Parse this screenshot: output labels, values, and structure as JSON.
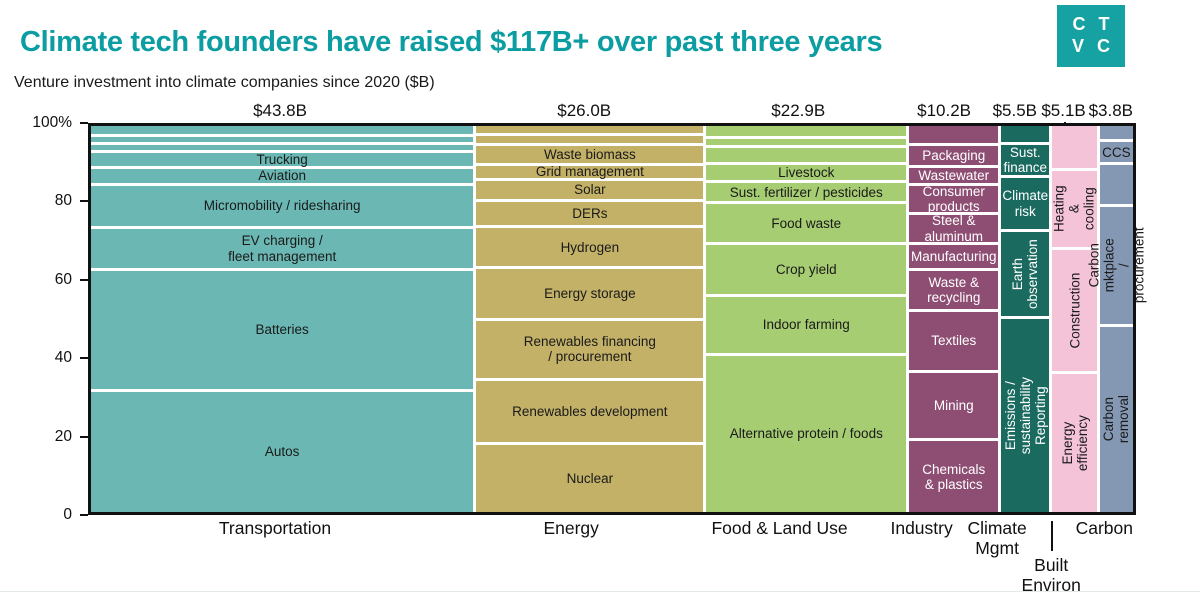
{
  "header": {
    "title": "Climate tech founders have raised $117B+ over past three years",
    "subtitle": "Venture investment into climate companies since 2020 ($B)",
    "title_color": "#0b9da1",
    "logo": {
      "line1": "CT",
      "line2": "VC",
      "background": "#16a2a2",
      "text_color": "#ffffff"
    }
  },
  "chart_data": {
    "type": "marimekko",
    "title": "Climate tech founders have raised $117B+ over past three years",
    "subtitle": "Venture investment into climate companies since 2020 ($B)",
    "total_value_billions": 117.3,
    "y_axis": {
      "ticks": [
        "100%",
        "80",
        "60",
        "40",
        "20",
        "0"
      ],
      "min": 0,
      "max": 100,
      "grid": false
    },
    "columns": [
      {
        "category": "Transportation",
        "value": 43.8,
        "value_label": "$43.8B",
        "color": "#6ab7b3",
        "text_color": "#1a1a1a",
        "segments": [
          {
            "label": "",
            "size": 8
          },
          {
            "label": "",
            "size": 5
          },
          {
            "label": "",
            "size": 5
          },
          {
            "label": "Trucking",
            "size": 12
          },
          {
            "label": "Aviation",
            "size": 14
          },
          {
            "label": "Micromobility / ridesharing",
            "size": 39
          },
          {
            "label": "EV charging /\nfleet management",
            "size": 39
          },
          {
            "label": "Batteries",
            "size": 115
          },
          {
            "label": "Autos",
            "size": 118
          }
        ]
      },
      {
        "category": "Energy",
        "value": 26.0,
        "value_label": "$26.0B",
        "color": "#c3b167",
        "text_color": "#1a1a1a",
        "segments": [
          {
            "label": "",
            "size": 7
          },
          {
            "label": "",
            "size": 7
          },
          {
            "label": "Waste biomass",
            "size": 16
          },
          {
            "label": "Grid management",
            "size": 12
          },
          {
            "label": "Solar",
            "size": 18
          },
          {
            "label": "DERs",
            "size": 23
          },
          {
            "label": "Hydrogen",
            "size": 37
          },
          {
            "label": "Energy storage",
            "size": 48
          },
          {
            "label": "Renewables financing\n/ procurement",
            "size": 56
          },
          {
            "label": "Renewables development",
            "size": 60
          },
          {
            "label": "Nuclear",
            "size": 66
          }
        ]
      },
      {
        "category": "Food & Land Use",
        "value": 22.9,
        "value_label": "$22.9B",
        "color": "#a6cd72",
        "text_color": "#1a1a1a",
        "segments": [
          {
            "label": "",
            "size": 10
          },
          {
            "label": "",
            "size": 6
          },
          {
            "label": "",
            "size": 13
          },
          {
            "label": "Livestock",
            "size": 15
          },
          {
            "label": "Sust. fertilizer / pesticides",
            "size": 18
          },
          {
            "label": "Food waste",
            "size": 37
          },
          {
            "label": "Crop yield",
            "size": 48
          },
          {
            "label": "Indoor farming",
            "size": 55
          },
          {
            "label": "Alternative protein / foods",
            "size": 153
          }
        ]
      },
      {
        "category": "Industry",
        "value": 10.2,
        "value_label": "$10.2B",
        "color": "#8e4d72",
        "text_color": "#ffffff",
        "segments": [
          {
            "label": "",
            "size": 17
          },
          {
            "label": "Packaging",
            "size": 18
          },
          {
            "label": "Wastewater",
            "size": 15
          },
          {
            "label": "Consumer\nproducts",
            "size": 25
          },
          {
            "label": "Steel &\naluminum",
            "size": 27
          },
          {
            "label": "Manufacturing",
            "size": 22
          },
          {
            "label": "Waste &\nrecycling",
            "size": 37
          },
          {
            "label": "Textiles",
            "size": 57
          },
          {
            "label": "Mining",
            "size": 64
          },
          {
            "label": "Chemicals\n& plastics",
            "size": 69
          }
        ]
      },
      {
        "category": "Climate\nMgmt",
        "value": 5.5,
        "value_label": "$5.5B",
        "color": "#1a6a60",
        "text_color": "#ffffff",
        "segments": [
          {
            "label": "",
            "size": 16
          },
          {
            "label": "Sust.\nfinance",
            "size": 29
          },
          {
            "label": "Climate\nrisk",
            "size": 50
          },
          {
            "label": "Earth\nobservation",
            "size": 82,
            "rotate": true
          },
          {
            "label": "Emissions / sustainability\nReporting",
            "size": 189,
            "rotate": true
          }
        ]
      },
      {
        "category": "Built\nEnviron",
        "value": 5.1,
        "value_label": "$5.1B",
        "value_label_raised": true,
        "category_lowered": true,
        "color": "#f4c3d8",
        "text_color": "#1a1a1a",
        "segments": [
          {
            "label": "",
            "size": 41
          },
          {
            "label": "Heating\n& cooling",
            "size": 75,
            "rotate": true
          },
          {
            "label": "Construction",
            "size": 119,
            "rotate": true
          },
          {
            "label": "Energy efficiency",
            "size": 136,
            "rotate": true
          }
        ]
      },
      {
        "category": "Carbon",
        "value": 3.8,
        "value_label": "$3.8B",
        "color": "#8497b3",
        "text_color": "#1a1a1a",
        "segments": [
          {
            "label": "",
            "size": 13
          },
          {
            "label": "CCS",
            "size": 19
          },
          {
            "label": "",
            "size": 38
          },
          {
            "label": "Carbon mktplace\n/ procurement",
            "size": 114,
            "rotate": true
          },
          {
            "label": "Carbon removal",
            "size": 181,
            "rotate": true
          }
        ]
      }
    ]
  }
}
